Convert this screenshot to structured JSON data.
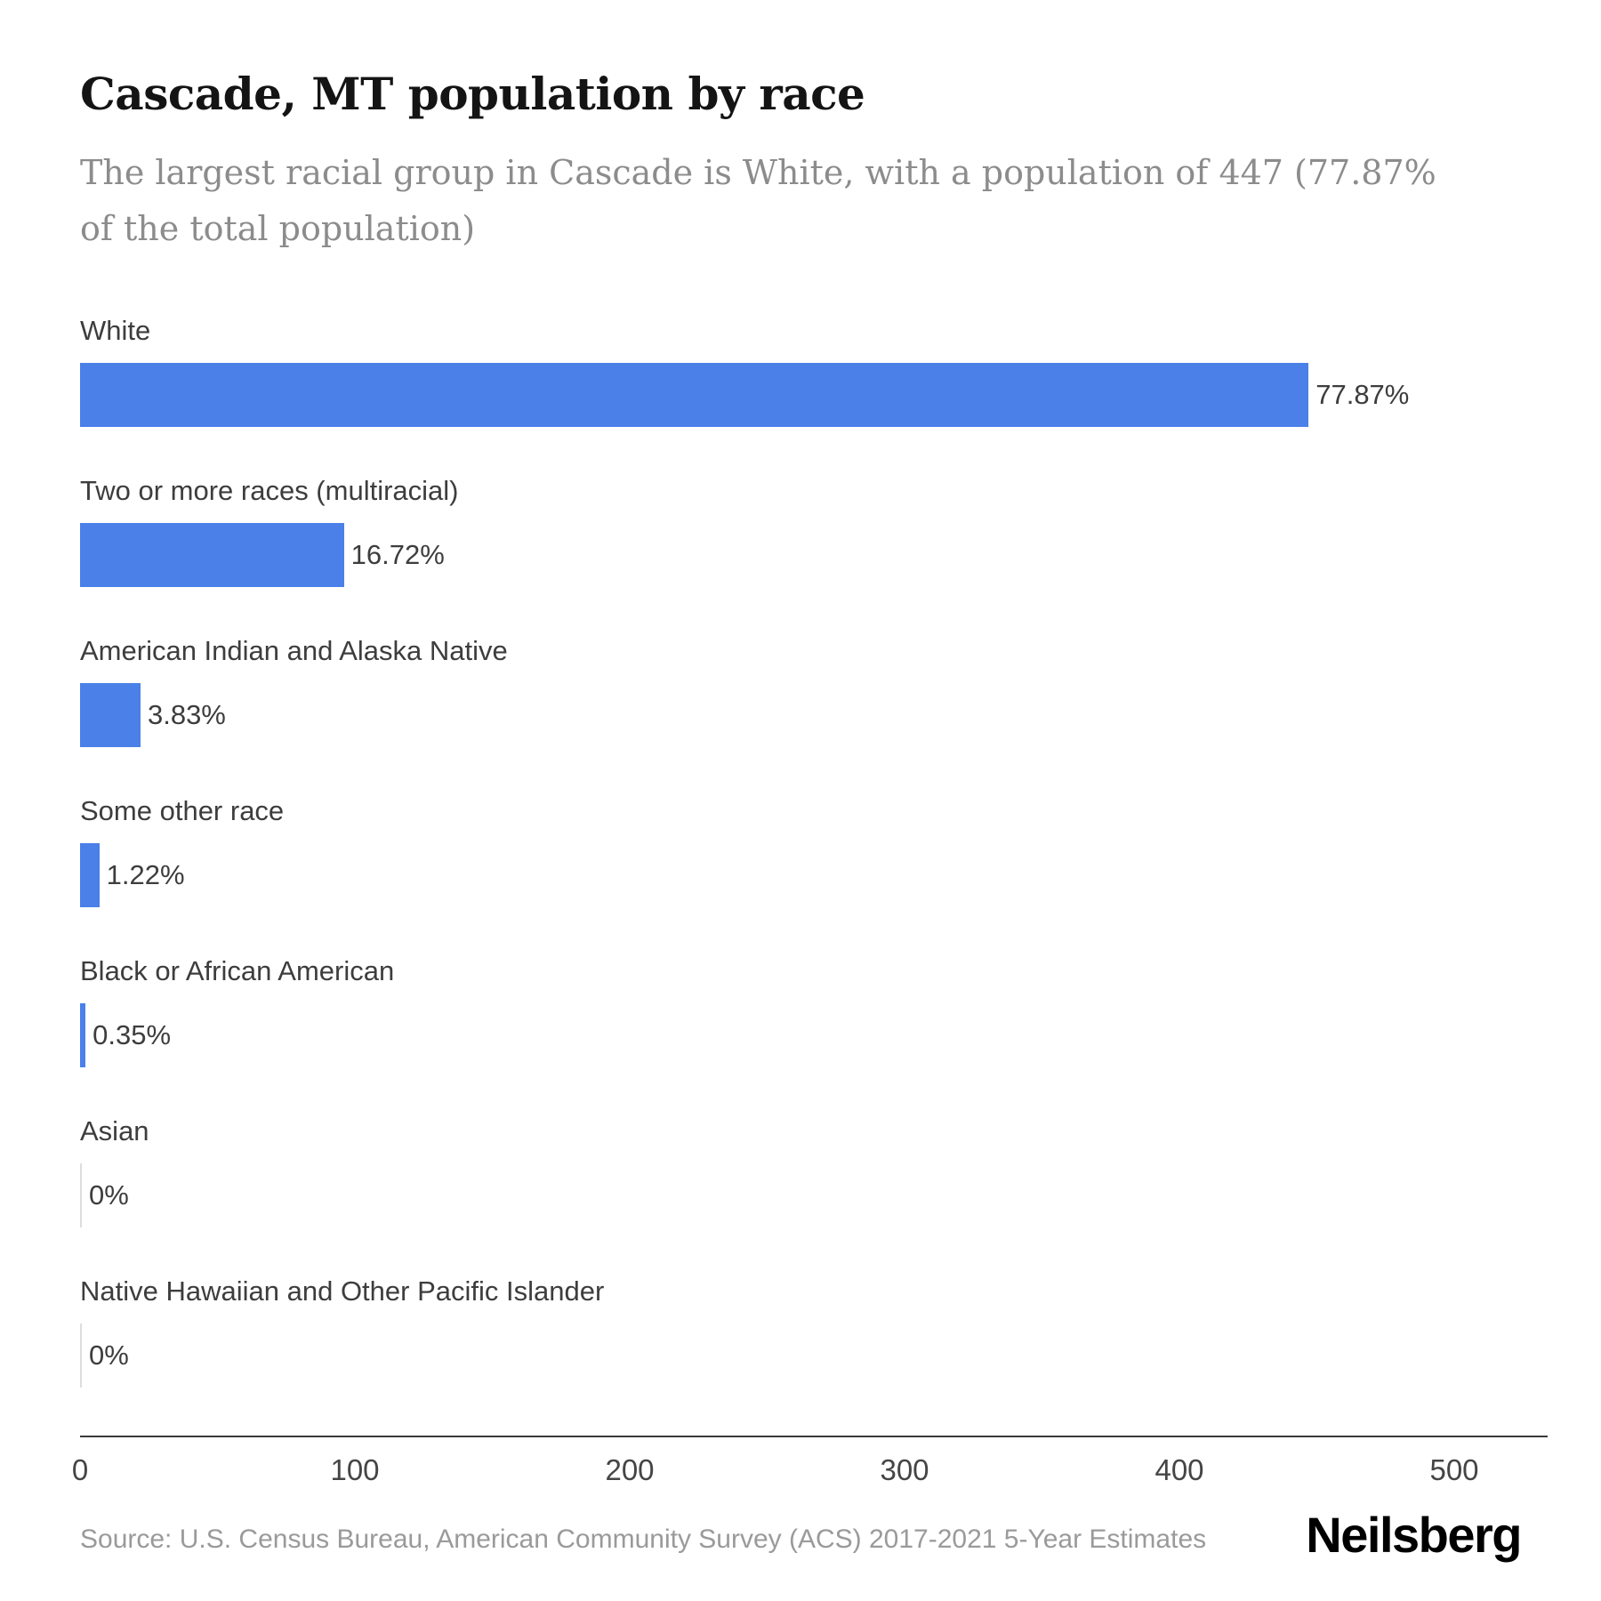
{
  "header": {
    "title": "Cascade, MT population by race",
    "subtitle": "The largest racial group in Cascade is White, with a population of 447 (77.87% of the total population)"
  },
  "chart_data": {
    "type": "bar",
    "orientation": "horizontal",
    "title": "Cascade, MT population by race",
    "categories": [
      "White",
      "Two or more races (multiracial)",
      "American Indian and Alaska Native",
      "Some other race",
      "Black or African American",
      "Asian",
      "Native Hawaiian and Other Pacific Islander"
    ],
    "values": [
      447,
      96,
      22,
      7,
      2,
      0,
      0
    ],
    "value_labels": [
      "77.87%",
      "16.72%",
      "3.83%",
      "1.22%",
      "0.35%",
      "0%",
      "0%"
    ],
    "x_ticks": [
      0,
      100,
      200,
      300,
      400,
      500
    ],
    "xlim": [
      0,
      534
    ],
    "xlabel": "",
    "ylabel": "",
    "grid": false,
    "legend": false,
    "bar_color": "#4a80e8",
    "zero_bar_color": "#dddddd"
  },
  "footer": {
    "source": "Source: U.S. Census Bureau, American Community Survey (ACS) 2017-2021 5-Year Estimates",
    "brand": "Neilsberg"
  }
}
